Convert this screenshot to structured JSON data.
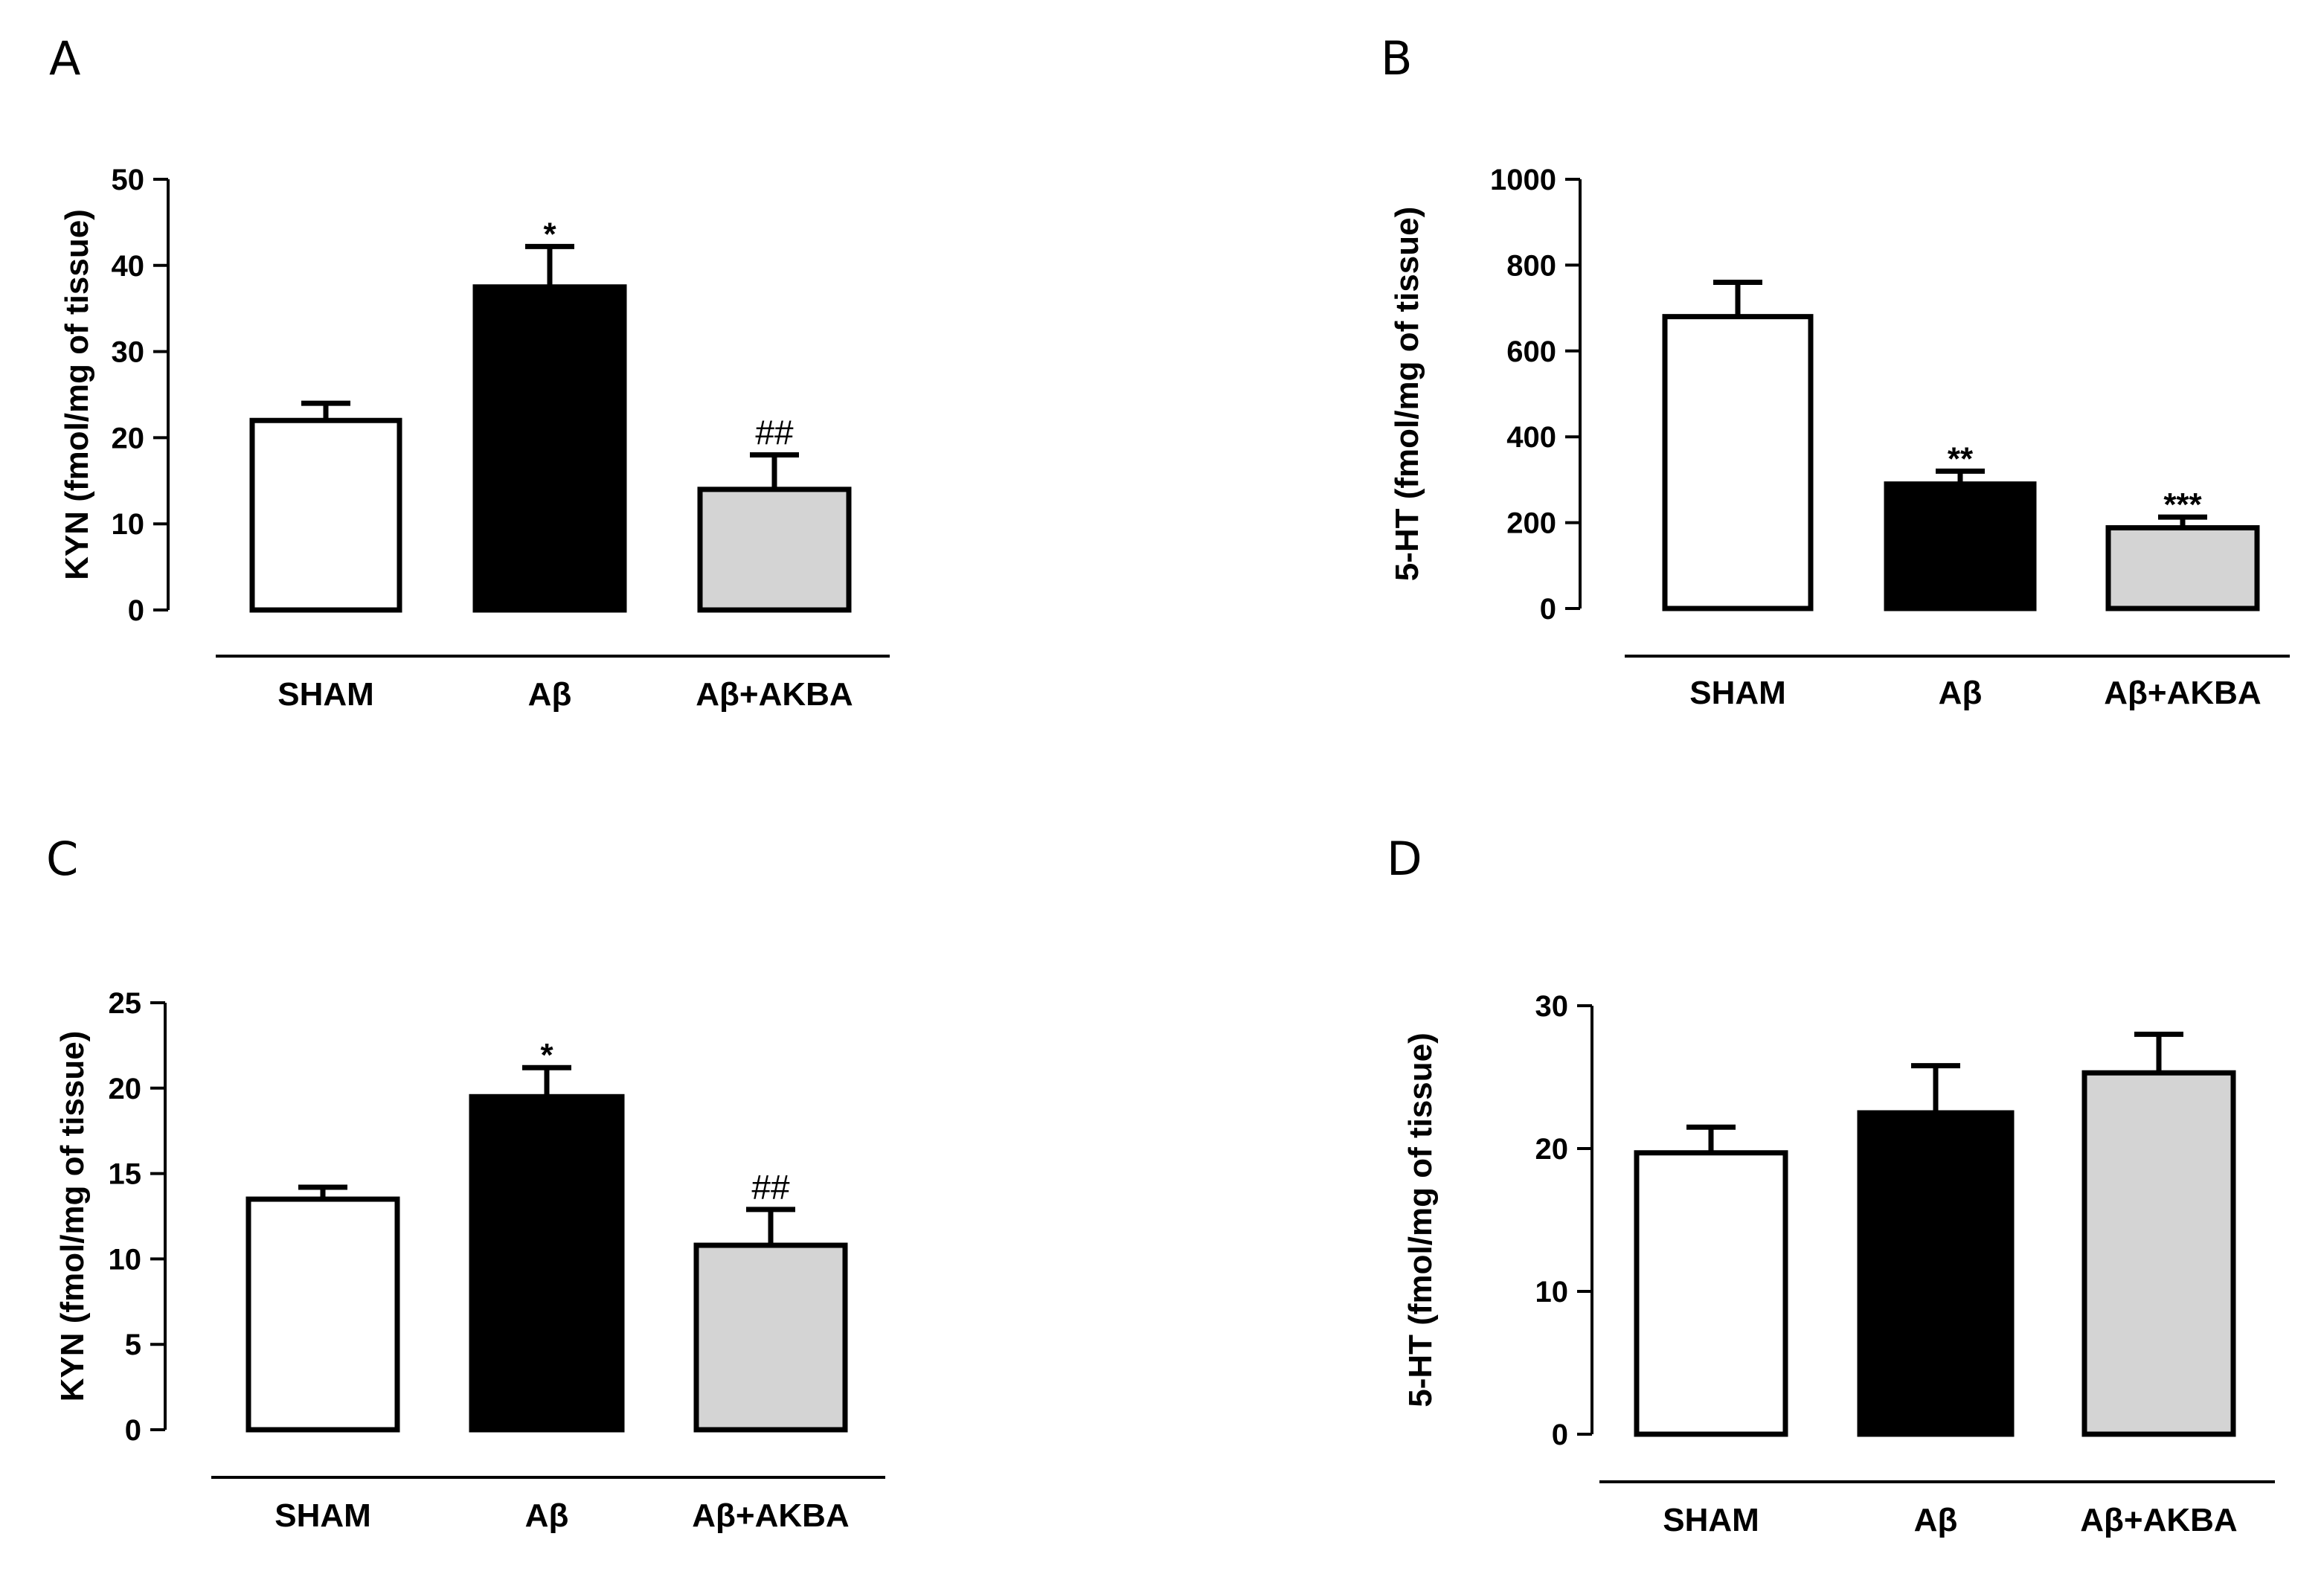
{
  "colors": {
    "sham": "#ffffff",
    "abeta": "#000000",
    "abeta_akba": "#d4d4d4",
    "stroke": "#000000"
  },
  "chart_data": [
    {
      "panel": "A",
      "type": "bar",
      "categories": [
        "SHAM",
        "Aβ",
        "Aβ+AKBA"
      ],
      "values": [
        22,
        37.5,
        14
      ],
      "errors": [
        2,
        4.7,
        4
      ],
      "annotations": [
        "",
        "*",
        "##"
      ],
      "ylabel": "KYN (fmol/mg of tissue)",
      "ylim": [
        0,
        50
      ],
      "yticks": [
        0,
        10,
        20,
        30,
        40,
        50
      ]
    },
    {
      "panel": "B",
      "type": "bar",
      "categories": [
        "SHAM",
        "Aβ",
        "Aβ+AKBA"
      ],
      "values": [
        680,
        290,
        188
      ],
      "errors": [
        80,
        30,
        25
      ],
      "annotations": [
        "",
        "**",
        "***"
      ],
      "ylabel": "5-HT (fmol/mg of tissue)",
      "ylim": [
        0,
        1000
      ],
      "yticks": [
        0,
        200,
        400,
        600,
        800,
        1000
      ]
    },
    {
      "panel": "C",
      "type": "bar",
      "categories": [
        "SHAM",
        "Aβ",
        "Aβ+AKBA"
      ],
      "values": [
        13.5,
        19.5,
        10.8
      ],
      "errors": [
        0.7,
        1.7,
        2.1
      ],
      "annotations": [
        "",
        "*",
        "##"
      ],
      "ylabel": "KYN (fmol/mg of tissue)",
      "ylim": [
        0,
        25
      ],
      "yticks": [
        0,
        5,
        10,
        15,
        20,
        25
      ]
    },
    {
      "panel": "D",
      "type": "bar",
      "categories": [
        "SHAM",
        "Aβ",
        "Aβ+AKBA"
      ],
      "values": [
        19.7,
        22.5,
        25.3
      ],
      "errors": [
        1.8,
        3.3,
        2.7
      ],
      "annotations": [
        "",
        "",
        ""
      ],
      "ylabel": "5-HT (fmol/mg of tissue)",
      "ylim": [
        0,
        30
      ],
      "yticks": [
        0,
        10,
        20,
        30
      ]
    }
  ]
}
